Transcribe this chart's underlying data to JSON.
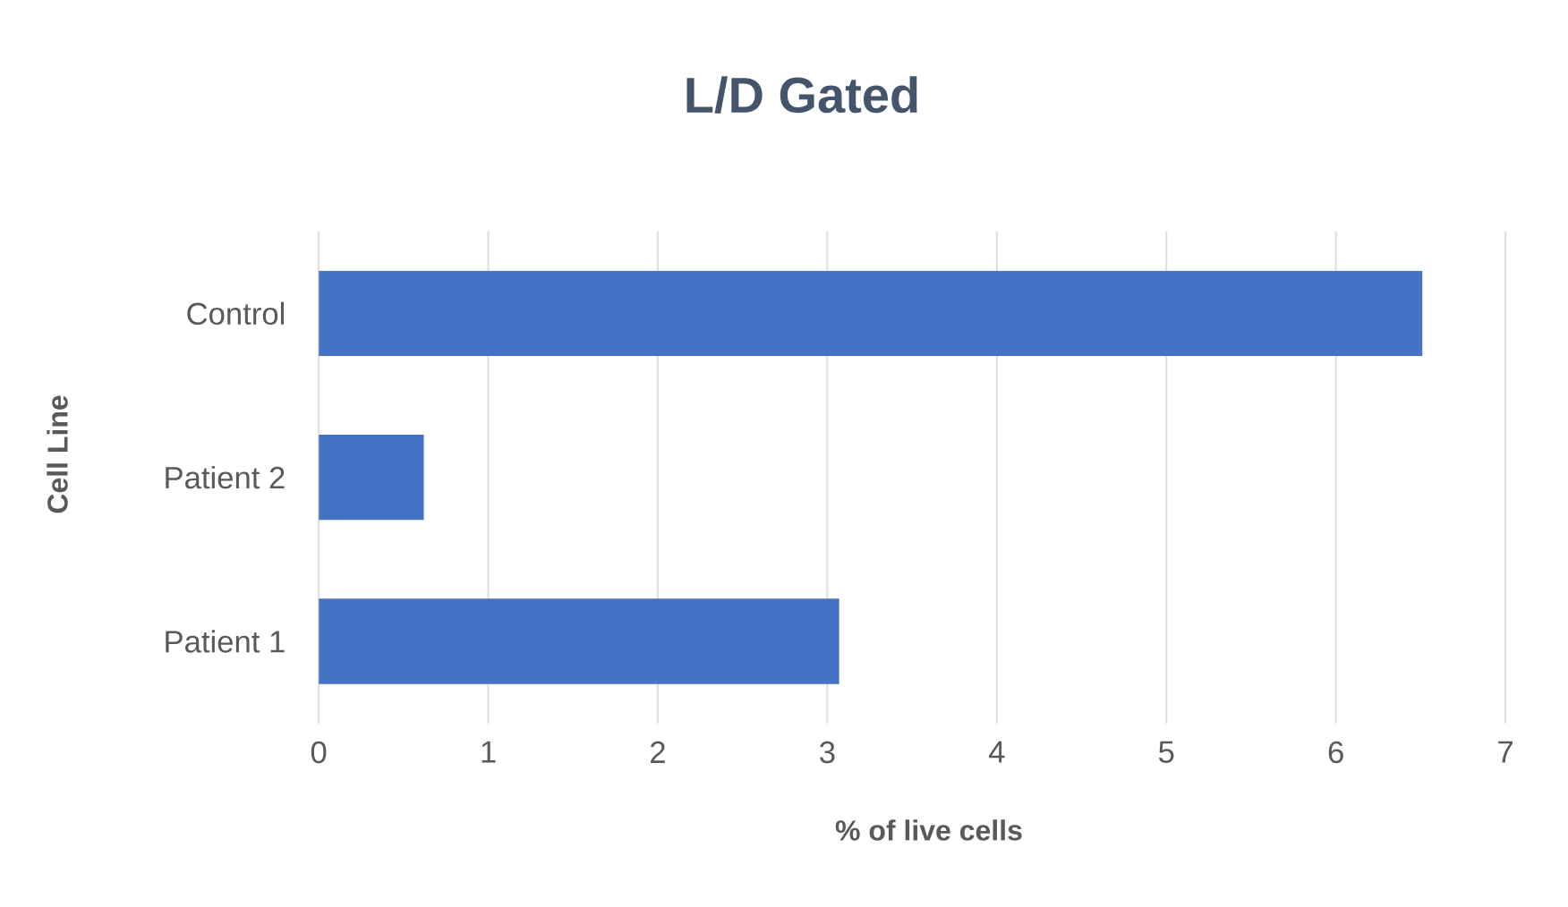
{
  "chart_data": {
    "type": "bar",
    "orientation": "horizontal",
    "title": "L/D Gated",
    "xlabel": "% of live cells",
    "ylabel": "Cell Line",
    "categories": [
      "Control",
      "Patient 2",
      "Patient 1"
    ],
    "values": [
      6.51,
      0.62,
      3.07
    ],
    "color": "#4472c4",
    "xlim": [
      0,
      7
    ],
    "xticks": [
      0,
      1,
      2,
      3,
      4,
      5,
      6,
      7
    ],
    "grid": "x"
  }
}
